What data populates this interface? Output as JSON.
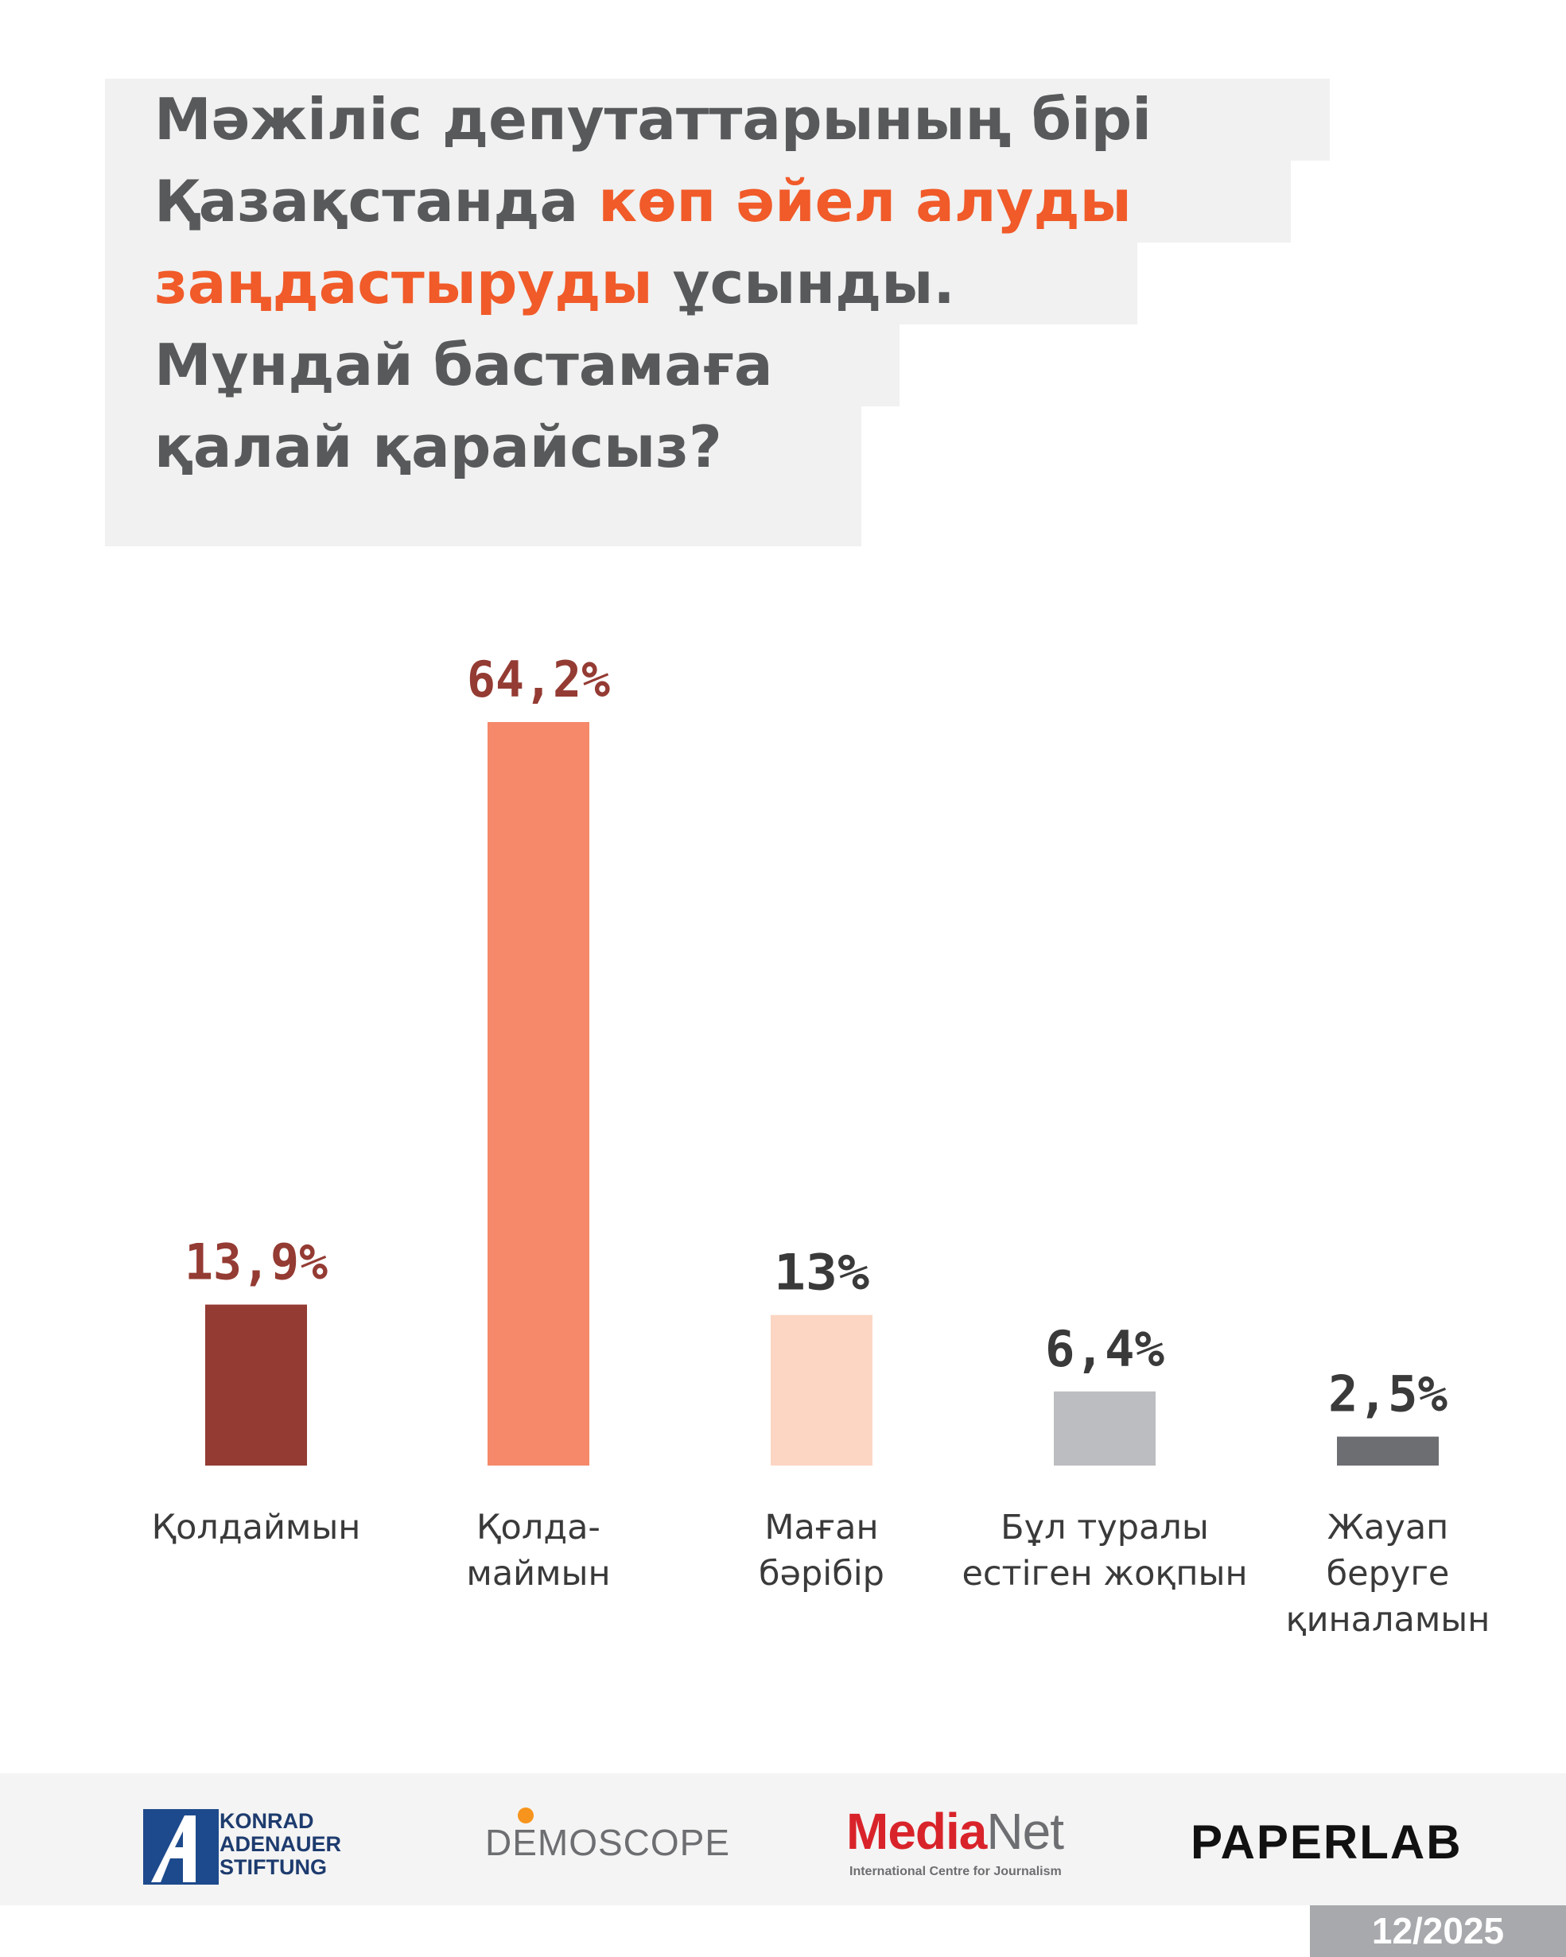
{
  "title": {
    "line_1": "Мәжіліс депутаттарының бірі",
    "line_2_plain": "Қазақстанда ",
    "line_2_highlight": "көп әйел алуды",
    "line_3_highlight": "заңдастыруды",
    "line_3_plain": " ұсынды.",
    "line_4": "Мұндай бастамаға",
    "line_5": "қалай қарайсыз?"
  },
  "colors": {
    "title_text": "#58595b",
    "title_highlight": "#f15a29",
    "title_background": "#f0f1f0"
  },
  "chart_data": {
    "type": "bar",
    "categories": [
      "Қолдаймын",
      "Қолда-\nмаймын",
      "Маған\nбәрібір",
      "Бұл туралы\nестіген жоқпын",
      "Жауап\nберуге\nқиналамын"
    ],
    "values": [
      13.9,
      64.2,
      13,
      6.4,
      2.5
    ],
    "value_labels": [
      "13,9%",
      "64,2%",
      "13%",
      "6,4%",
      "2,5%"
    ],
    "bar_colors": [
      "#943b33",
      "#f5896a",
      "#fcd5c3",
      "#bcbdc0",
      "#6d6e71"
    ],
    "value_label_colors": [
      "#943b33",
      "#943b33",
      "#3a3a3a",
      "#3a3a3a",
      "#3a3a3a"
    ],
    "ylim": [
      0,
      64.2
    ],
    "grid": false
  },
  "footer": {
    "logos": {
      "kas": "KONRAD\nADENAUER\nSTIFTUNG",
      "demoscope": "DEMOSCOPE",
      "medianet_main": "Media",
      "medianet_net": "Net",
      "medianet_sub": "International Centre for Journalism",
      "paperlab": "PAPERLAB"
    },
    "date": "12/2025"
  }
}
